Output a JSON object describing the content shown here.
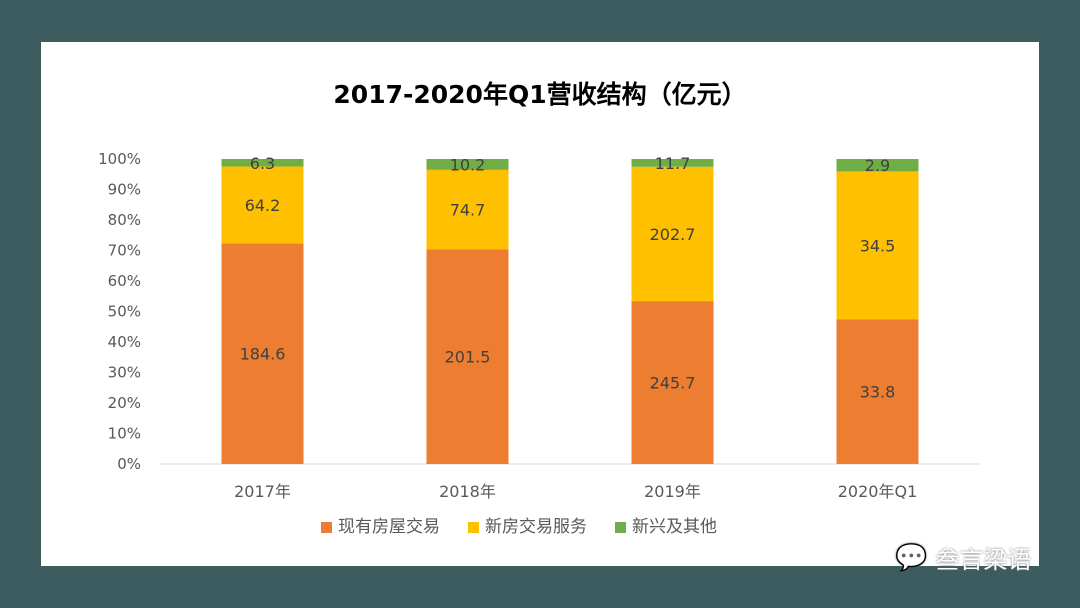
{
  "chart_data": {
    "type": "bar",
    "stacked": "percent",
    "title": "2017-2020年Q1营收结构（亿元）",
    "categories": [
      "2017年",
      "2018年",
      "2019年",
      "2020年Q1"
    ],
    "series": [
      {
        "name": "现有房屋交易",
        "color": "#ed7d31",
        "values": [
          184.6,
          201.5,
          245.7,
          33.8
        ]
      },
      {
        "name": "新房交易服务",
        "color": "#ffc000",
        "values": [
          64.2,
          74.7,
          202.7,
          34.5
        ]
      },
      {
        "name": "新兴及其他",
        "color": "#70ad47",
        "values": [
          6.3,
          10.2,
          11.7,
          2.9
        ]
      }
    ],
    "yticks": [
      "0%",
      "10%",
      "20%",
      "30%",
      "40%",
      "50%",
      "60%",
      "70%",
      "80%",
      "90%",
      "100%"
    ],
    "ylim": [
      0,
      100
    ],
    "grid": false,
    "legend": "bottom"
  },
  "watermark": "叁言梁语"
}
